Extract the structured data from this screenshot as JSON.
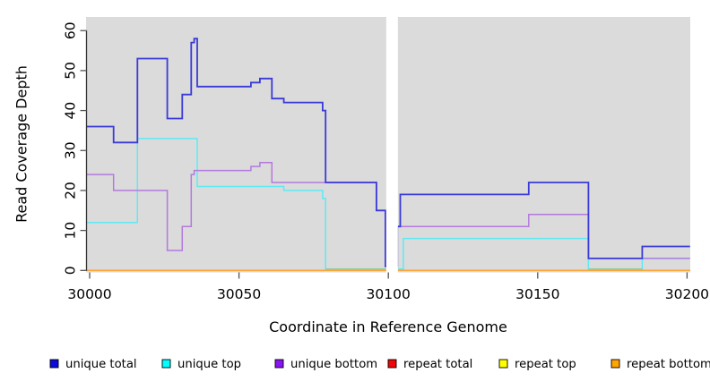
{
  "chart_data": {
    "type": "line",
    "subtype": "step-coverage-plot",
    "title": "",
    "xlabel": "Coordinate in Reference Genome",
    "ylabel": "Read Coverage Depth",
    "xlim": [
      29999,
      30201
    ],
    "ylim": [
      0,
      60
    ],
    "x_ticks": [
      30000,
      30050,
      30100,
      30150,
      30200
    ],
    "y_ticks": [
      0,
      10,
      20,
      30,
      40,
      50,
      60
    ],
    "grid": "off",
    "legend_position": "bottom",
    "gap_region": {
      "x_start": 30099.3,
      "x_end": 30103.2,
      "note": "white no-data band"
    },
    "series": [
      {
        "name": "repeat total",
        "color": "#F03030",
        "steps": [
          [
            29999,
            0
          ],
          [
            30201,
            0
          ]
        ]
      },
      {
        "name": "repeat top",
        "color": "#FFFF00",
        "steps": [
          [
            29999,
            0
          ],
          [
            30201,
            0
          ]
        ]
      },
      {
        "name": "repeat bottom",
        "color": "#FFA435",
        "steps": [
          [
            29999,
            0
          ],
          [
            30201,
            0
          ]
        ]
      },
      {
        "name": "unique top",
        "color": "#5FE9F2",
        "steps": [
          [
            29999,
            12
          ],
          [
            30016,
            33
          ],
          [
            30036,
            21
          ],
          [
            30065,
            20
          ],
          [
            30078,
            18
          ],
          [
            30079,
            0.35
          ],
          [
            30105,
            8
          ],
          [
            30167,
            0.35
          ],
          [
            30185,
            3
          ],
          [
            30201,
            3
          ]
        ]
      },
      {
        "name": "unique bottom",
        "color": "#B37ADC",
        "steps": [
          [
            29999,
            24
          ],
          [
            30008,
            20
          ],
          [
            30026,
            5
          ],
          [
            30031,
            11
          ],
          [
            30034,
            24
          ],
          [
            30035,
            25
          ],
          [
            30054,
            26
          ],
          [
            30057,
            27
          ],
          [
            30061,
            22
          ],
          [
            30096,
            15
          ],
          [
            30099,
            1
          ],
          [
            30103,
            11
          ],
          [
            30147,
            14
          ],
          [
            30167,
            3
          ],
          [
            30201,
            3
          ]
        ]
      },
      {
        "name": "unique total",
        "color": "#3A3AD8",
        "steps": [
          [
            29999,
            36
          ],
          [
            30008,
            32
          ],
          [
            30016,
            53
          ],
          [
            30026,
            38
          ],
          [
            30031,
            44
          ],
          [
            30034,
            57
          ],
          [
            30035,
            58
          ],
          [
            30036,
            46
          ],
          [
            30054,
            47
          ],
          [
            30057,
            48
          ],
          [
            30061,
            43
          ],
          [
            30065,
            42
          ],
          [
            30078,
            40
          ],
          [
            30079,
            22
          ],
          [
            30096,
            15
          ],
          [
            30099,
            1
          ],
          [
            30103,
            11
          ],
          [
            30104,
            19
          ],
          [
            30147,
            22
          ],
          [
            30167,
            3
          ],
          [
            30185,
            6
          ],
          [
            30201,
            6
          ]
        ]
      }
    ],
    "blend_segments": [
      {
        "x_start": 30079,
        "x_end": 30100,
        "value": 0.35,
        "color": "#8FCE9F"
      },
      {
        "x_start": 30167,
        "x_end": 30185,
        "value": 0.35,
        "color": "#8FCE9F"
      }
    ],
    "legend": {
      "items": [
        {
          "label": "unique total",
          "color": "#0B0BDB"
        },
        {
          "label": "unique top",
          "color": "#00FFFF"
        },
        {
          "label": "unique bottom",
          "color": "#8913F2"
        },
        {
          "label": "repeat total",
          "color": "#F40404"
        },
        {
          "label": "repeat top",
          "color": "#FFFF00"
        },
        {
          "label": "repeat bottom",
          "color": "#FFA500"
        }
      ]
    },
    "style": {
      "panel_bg": "#DBDBDB",
      "page_bg": "#FFFFFF",
      "axis_color": "#333333",
      "tick_color": "#555555",
      "text_color": "#000000"
    }
  }
}
